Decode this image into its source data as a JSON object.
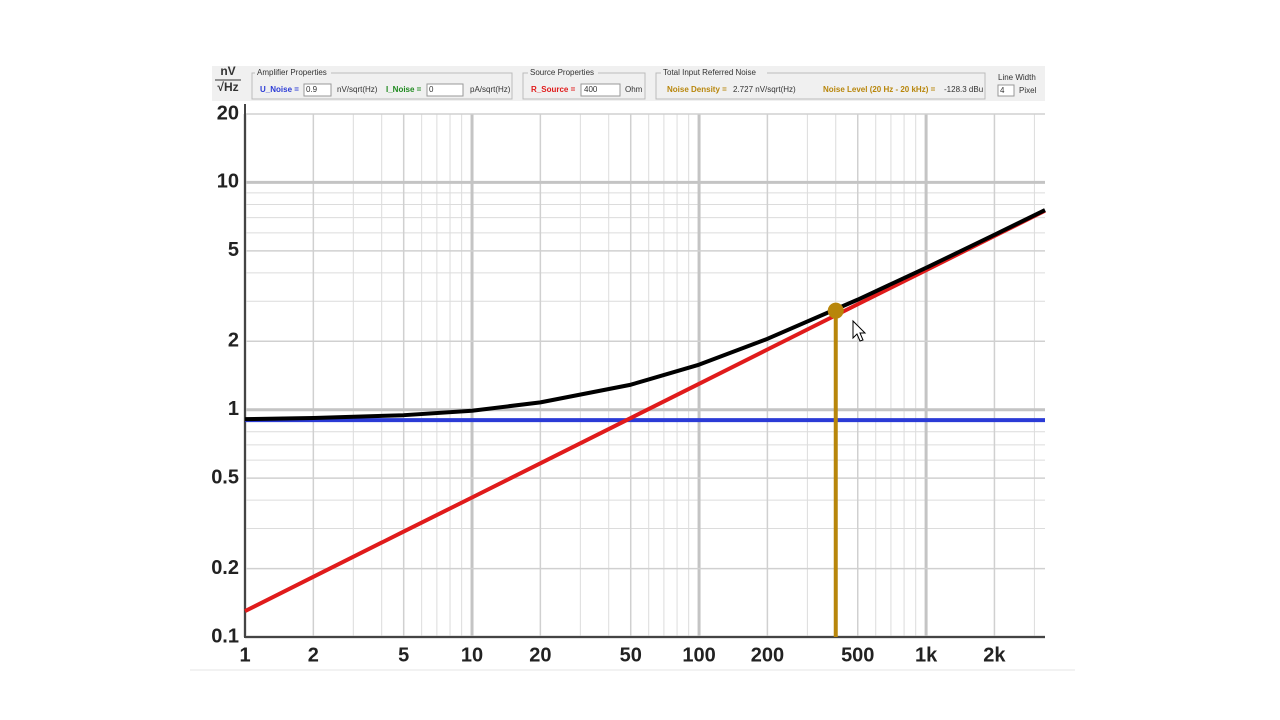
{
  "controls": {
    "amplifier": {
      "title": "Amplifier Properties",
      "u_label": "U_Noise =",
      "u_value": "0.9",
      "u_unit": "nV/sqrt(Hz)",
      "i_label": "I_Noise =",
      "i_value": "0",
      "i_unit": "pA/sqrt(Hz)"
    },
    "source": {
      "title": "Source Properties",
      "r_label": "R_Source =",
      "r_value": "400",
      "r_unit": "Ohm"
    },
    "total": {
      "title": "Total Input Referred Noise",
      "density_label": "Noise Density =",
      "density_value": "2.727 nV/sqrt(Hz)",
      "level_label": "Noise Level (20 Hz - 20 kHz) =",
      "level_value": "-128.3 dBu"
    },
    "line_width": {
      "title": "Line Width",
      "value": "4",
      "unit": "Pixel"
    }
  },
  "chart_data": {
    "type": "line",
    "ylabel_top": "nV",
    "ylabel_bottom": "√Hz",
    "x": [
      1,
      2,
      5,
      10,
      20,
      50,
      100,
      200,
      500,
      1000,
      2000,
      3340
    ],
    "series": [
      {
        "name": "U_Noise",
        "color": "#2b3bd6",
        "values": [
          0.9,
          0.9,
          0.9,
          0.9,
          0.9,
          0.9,
          0.9,
          0.9,
          0.9,
          0.9,
          0.9,
          0.9
        ]
      },
      {
        "name": "R_Source",
        "color": "#e01b1b",
        "values": [
          0.13,
          0.184,
          0.291,
          0.411,
          0.581,
          0.919,
          1.3,
          1.84,
          2.91,
          4.11,
          5.81,
          7.51
        ]
      },
      {
        "name": "Total",
        "color": "#000000",
        "values": [
          0.909,
          0.919,
          0.946,
          0.99,
          1.077,
          1.288,
          1.578,
          2.05,
          3.05,
          4.21,
          5.88,
          7.56
        ]
      }
    ],
    "marker": {
      "x": 400,
      "y": 2.727,
      "color": "#b8860b"
    },
    "xlim": [
      1,
      3340
    ],
    "ylim": [
      0.1,
      20
    ],
    "log_x": true,
    "log_y": true,
    "grid": true,
    "xticks": [
      1,
      2,
      5,
      10,
      20,
      50,
      100,
      200,
      500,
      {
        "value": 1000,
        "label": "1k"
      },
      {
        "value": 2000,
        "label": "2k"
      }
    ],
    "yticks": [
      0.1,
      0.2,
      0.5,
      1,
      2,
      5,
      10,
      20
    ],
    "xminor": [
      3,
      4,
      6,
      7,
      8,
      9,
      30,
      40,
      60,
      70,
      80,
      90,
      300,
      400,
      600,
      700,
      800,
      900,
      3000
    ],
    "yminor": [
      0.3,
      0.4,
      0.6,
      0.7,
      0.8,
      0.9,
      3,
      4,
      6,
      7,
      8,
      9
    ]
  }
}
